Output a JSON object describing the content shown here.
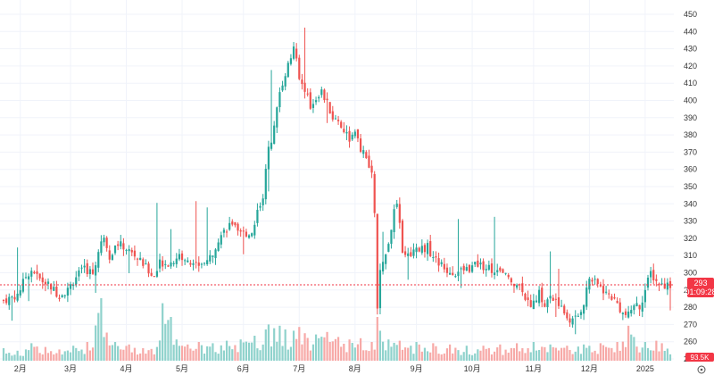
{
  "chart_data": {
    "type": "candlestick",
    "title": "",
    "y_ticks": [
      250,
      260,
      270,
      280,
      290,
      300,
      310,
      320,
      330,
      340,
      350,
      360,
      370,
      380,
      390,
      400,
      410,
      420,
      430,
      440,
      450
    ],
    "ylim": [
      250,
      450
    ],
    "x_tick_labels": [
      "2月",
      "3月",
      "4月",
      "5月",
      "6月",
      "7月",
      "8月",
      "9月",
      "10月",
      "11月",
      "12月",
      "2025"
    ],
    "x_tick_index": [
      6,
      24,
      44,
      64,
      86,
      106,
      126,
      148,
      168,
      190,
      210,
      230
    ],
    "last_price": 293,
    "last_price_label": "293",
    "countdown": "01:09:28",
    "last_volume_label": "93.5K",
    "close_path": [
      [
        0,
        284
      ],
      [
        5,
        287
      ],
      [
        8,
        298
      ],
      [
        10,
        302
      ],
      [
        13,
        296
      ],
      [
        16,
        293
      ],
      [
        20,
        287
      ],
      [
        23,
        290
      ],
      [
        26,
        298
      ],
      [
        29,
        302
      ],
      [
        32,
        300
      ],
      [
        34,
        312
      ],
      [
        36,
        322
      ],
      [
        38,
        310
      ],
      [
        41,
        317
      ],
      [
        44,
        314
      ],
      [
        47,
        310
      ],
      [
        51,
        303
      ],
      [
        54,
        298
      ],
      [
        56,
        306
      ],
      [
        60,
        306
      ],
      [
        63,
        310
      ],
      [
        66,
        306
      ],
      [
        70,
        305
      ],
      [
        74,
        308
      ],
      [
        77,
        320
      ],
      [
        80,
        326
      ],
      [
        82,
        329
      ],
      [
        84,
        322
      ],
      [
        87,
        323
      ],
      [
        89,
        323
      ],
      [
        91,
        336
      ],
      [
        93,
        345
      ],
      [
        95,
        372
      ],
      [
        97,
        384
      ],
      [
        99,
        405
      ],
      [
        101,
        416
      ],
      [
        103,
        425
      ],
      [
        104,
        432
      ],
      [
        106,
        412
      ],
      [
        108,
        407
      ],
      [
        110,
        396
      ],
      [
        112,
        402
      ],
      [
        114,
        405
      ],
      [
        116,
        398
      ],
      [
        118,
        390
      ],
      [
        120,
        388
      ],
      [
        122,
        383
      ],
      [
        124,
        378
      ],
      [
        126,
        380
      ],
      [
        128,
        372
      ],
      [
        130,
        366
      ],
      [
        132,
        356
      ],
      [
        133,
        336
      ],
      [
        134,
        278
      ],
      [
        135,
        300
      ],
      [
        137,
        310
      ],
      [
        140,
        335
      ],
      [
        141,
        339
      ],
      [
        143,
        314
      ],
      [
        145,
        310
      ],
      [
        148,
        315
      ],
      [
        150,
        314
      ],
      [
        152,
        315
      ],
      [
        154,
        309
      ],
      [
        156,
        306
      ],
      [
        158,
        302
      ],
      [
        162,
        300
      ],
      [
        166,
        302
      ],
      [
        170,
        305
      ],
      [
        174,
        303
      ],
      [
        178,
        300
      ],
      [
        182,
        296
      ],
      [
        186,
        291
      ],
      [
        188,
        282
      ],
      [
        190,
        283
      ],
      [
        192,
        288
      ],
      [
        194,
        281
      ],
      [
        196,
        286
      ],
      [
        198,
        283
      ],
      [
        200,
        280
      ],
      [
        202,
        274
      ],
      [
        204,
        272
      ],
      [
        206,
        275
      ],
      [
        208,
        283
      ],
      [
        210,
        297
      ],
      [
        212,
        294
      ],
      [
        214,
        292
      ],
      [
        216,
        288
      ],
      [
        218,
        286
      ],
      [
        220,
        282
      ],
      [
        222,
        276
      ],
      [
        224,
        275
      ],
      [
        226,
        282
      ],
      [
        228,
        280
      ],
      [
        230,
        290
      ],
      [
        232,
        300
      ],
      [
        234,
        295
      ],
      [
        236,
        293
      ]
    ],
    "volume_bars": [
      [
        0,
        0.2
      ],
      [
        5,
        0.16
      ],
      [
        10,
        0.28
      ],
      [
        15,
        0.22
      ],
      [
        20,
        0.18
      ],
      [
        25,
        0.24
      ],
      [
        30,
        0.3
      ],
      [
        35,
        1.0
      ],
      [
        37,
        0.45
      ],
      [
        40,
        0.3
      ],
      [
        45,
        0.26
      ],
      [
        50,
        0.2
      ],
      [
        55,
        0.22
      ],
      [
        57,
        0.92
      ],
      [
        60,
        0.7
      ],
      [
        62,
        0.34
      ],
      [
        66,
        0.26
      ],
      [
        70,
        0.3
      ],
      [
        75,
        0.28
      ],
      [
        80,
        0.32
      ],
      [
        85,
        0.34
      ],
      [
        90,
        0.4
      ],
      [
        94,
        0.5
      ],
      [
        95,
        0.58
      ],
      [
        97,
        0.52
      ],
      [
        99,
        0.56
      ],
      [
        101,
        0.5
      ],
      [
        104,
        0.48
      ],
      [
        106,
        0.54
      ],
      [
        108,
        0.44
      ],
      [
        112,
        0.42
      ],
      [
        116,
        0.46
      ],
      [
        120,
        0.38
      ],
      [
        124,
        0.34
      ],
      [
        128,
        0.36
      ],
      [
        132,
        0.3
      ],
      [
        134,
        0.7
      ],
      [
        135,
        0.48
      ],
      [
        138,
        0.34
      ],
      [
        142,
        0.32
      ],
      [
        148,
        0.3
      ],
      [
        154,
        0.28
      ],
      [
        160,
        0.26
      ],
      [
        166,
        0.24
      ],
      [
        172,
        0.24
      ],
      [
        178,
        0.26
      ],
      [
        184,
        0.28
      ],
      [
        190,
        0.3
      ],
      [
        196,
        0.26
      ],
      [
        202,
        0.24
      ],
      [
        208,
        0.26
      ],
      [
        214,
        0.28
      ],
      [
        220,
        0.3
      ],
      [
        224,
        0.56
      ],
      [
        226,
        0.38
      ],
      [
        230,
        0.3
      ],
      [
        234,
        0.32
      ],
      [
        236,
        0.28
      ]
    ]
  },
  "colors": {
    "up": "#26a69a",
    "down": "#ef5350",
    "up_volume": "#8fd2cc",
    "down_volume": "#f7a9a7",
    "grid": "#f0f3fa",
    "axis_text": "#333333",
    "price_line": "#f23645"
  },
  "icons": {
    "settings": "settings-icon"
  }
}
